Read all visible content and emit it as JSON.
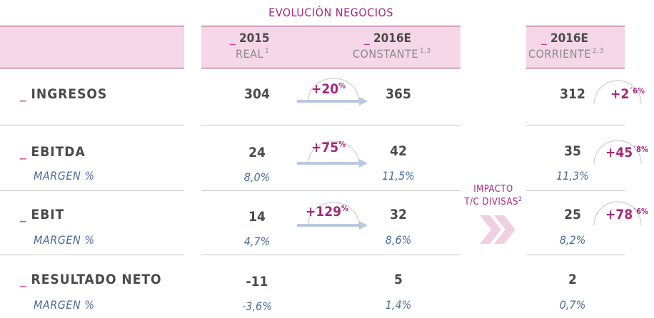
{
  "title": "EVOLUCIÓN NEGOCIOS",
  "columns": {
    "c2015": {
      "dash": "_",
      "year": "2015",
      "sub": "REAL",
      "sup": "1"
    },
    "c2016c": {
      "dash": "_",
      "year": "2016E",
      "sub": "CONSTANTE",
      "sup": "1,3"
    },
    "c2016r": {
      "dash": "_",
      "year": "2016E",
      "sub": "CORRIENTE",
      "sup": "2,3"
    }
  },
  "rows": [
    {
      "dash": "_",
      "label": "INGRESOS",
      "v2015": "304",
      "v2016c": "365",
      "v2016r": "312",
      "growth_const": "+20",
      "growth_const_sup": "%",
      "growth_curr": "+2",
      "growth_curr_sup": "´6%"
    },
    {
      "dash": "_",
      "label": "EBITDA",
      "v2015": "24",
      "v2016c": "42",
      "v2016r": "35",
      "margin_label": "MARGEN %",
      "m2015": "8,0%",
      "m2016c": "11,5%",
      "m2016r": "11,3%",
      "growth_const": "+75",
      "growth_const_sup": "%",
      "growth_curr": "+45",
      "growth_curr_sup": "´8%"
    },
    {
      "dash": "_",
      "label": "EBIT",
      "v2015": "14",
      "v2016c": "32",
      "v2016r": "25",
      "margin_label": "MARGEN %",
      "m2015": "4,7%",
      "m2016c": "8,6%",
      "m2016r": "8,2%",
      "growth_const": "+129",
      "growth_const_sup": "%",
      "growth_curr": "+78",
      "growth_curr_sup": "´6%"
    },
    {
      "dash": "_",
      "label": "RESULTADO NETO",
      "v2015": "-11",
      "v2016c": "5",
      "v2016r": "2",
      "margin_label": "MARGEN %",
      "m2015": "-3,6%",
      "m2016c": "1,4%",
      "m2016r": "0,7%"
    }
  ],
  "impact": {
    "line1": "IMPACTO",
    "line2": "T/C DIVISAS",
    "sup": "2"
  },
  "colors": {
    "accent": "#a3287b",
    "header_band": "#f5d7e8",
    "arrow": "#b8c8de",
    "chevron": "#f0cfe0"
  }
}
